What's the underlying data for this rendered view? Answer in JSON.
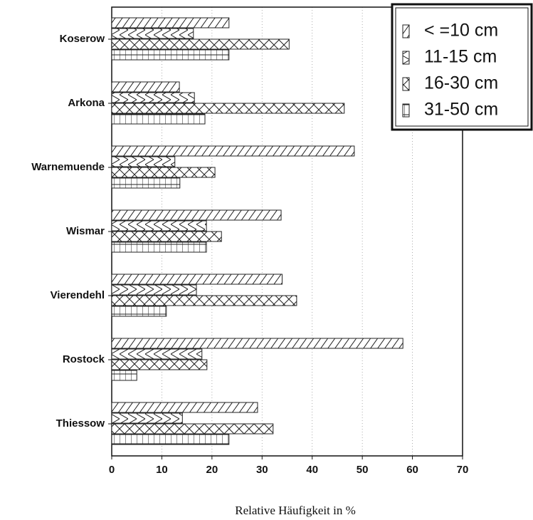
{
  "chart_data": {
    "type": "bar",
    "orientation": "horizontal",
    "x_label": "Relative Häufigkeit in %",
    "categories": [
      "Koserow",
      "Arkona",
      "Warnemuende",
      "Wismar",
      "Vierendehl",
      "Rostock",
      "Thiessow"
    ],
    "series": [
      {
        "name": "< =10 cm",
        "color": "#222222",
        "values": [
          23.4,
          13.5,
          48.4,
          33.8,
          34,
          58.1,
          29.1
        ]
      },
      {
        "name": "11-15 cm",
        "color": "#222222",
        "values": [
          16.3,
          16.5,
          12.6,
          18.9,
          16.9,
          18,
          14.1
        ]
      },
      {
        "name": "16-30 cm",
        "color": "#222222",
        "values": [
          35.4,
          46.4,
          20.6,
          21.9,
          36.9,
          19,
          32.2
        ]
      },
      {
        "name": "31-50 cm",
        "color": "#222222",
        "values": [
          23.4,
          18.6,
          13.6,
          18.9,
          10.9,
          5,
          23.4
        ]
      }
    ],
    "xlim": [
      0,
      70
    ],
    "xticks": [
      0,
      10,
      20,
      30,
      40,
      50,
      60,
      70
    ],
    "grid": true,
    "legend": "upper right"
  }
}
